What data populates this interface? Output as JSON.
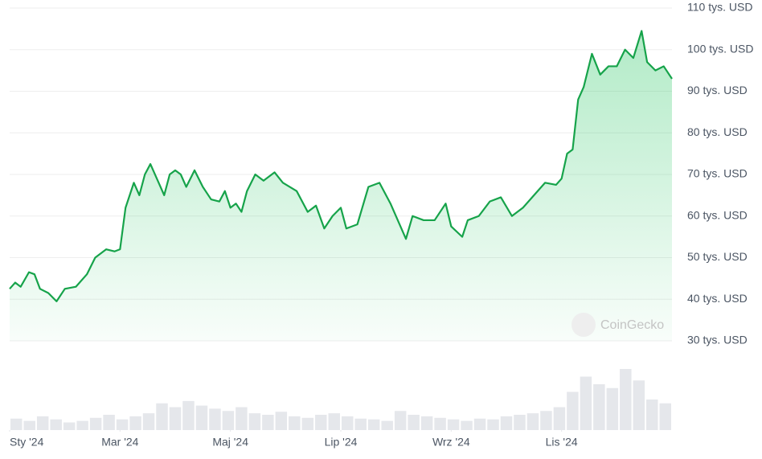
{
  "chart_data": {
    "type": "area",
    "watermark": "CoinGecko",
    "xlim": [
      0,
      12
    ],
    "xticks": [
      {
        "value": 0,
        "label": "Sty '24"
      },
      {
        "value": 2,
        "label": "Mar '24"
      },
      {
        "value": 4,
        "label": "Maj '24"
      },
      {
        "value": 6,
        "label": "Lip '24"
      },
      {
        "value": 8,
        "label": "Wrz '24"
      },
      {
        "value": 10,
        "label": "Lis '24"
      }
    ],
    "ylim": [
      30,
      110
    ],
    "yticks": [
      {
        "value": 30,
        "label": "30 tys. USD"
      },
      {
        "value": 40,
        "label": "40 tys. USD"
      },
      {
        "value": 50,
        "label": "50 tys. USD"
      },
      {
        "value": 60,
        "label": "60 tys. USD"
      },
      {
        "value": 70,
        "label": "70 tys. USD"
      },
      {
        "value": 80,
        "label": "80 tys. USD"
      },
      {
        "value": 90,
        "label": "90 tys. USD"
      },
      {
        "value": 100,
        "label": "100 tys. USD"
      },
      {
        "value": 110,
        "label": "110 tys. USD"
      }
    ],
    "grid": true,
    "color": "#16a34a",
    "x": [
      0,
      0.1,
      0.2,
      0.35,
      0.45,
      0.55,
      0.7,
      0.85,
      1,
      1.2,
      1.4,
      1.55,
      1.75,
      1.9,
      2,
      2.1,
      2.25,
      2.35,
      2.45,
      2.55,
      2.7,
      2.8,
      2.9,
      3,
      3.1,
      3.2,
      3.35,
      3.5,
      3.65,
      3.8,
      3.9,
      4,
      4.1,
      4.2,
      4.3,
      4.45,
      4.6,
      4.8,
      4.95,
      5.2,
      5.4,
      5.55,
      5.7,
      5.85,
      6,
      6.1,
      6.3,
      6.5,
      6.7,
      6.9,
      7.18,
      7.3,
      7.5,
      7.7,
      7.9,
      8,
      8.2,
      8.3,
      8.5,
      8.7,
      8.9,
      9.1,
      9.3,
      9.5,
      9.7,
      9.9,
      10,
      10.1,
      10.2,
      10.3,
      10.4,
      10.55,
      10.7,
      10.85,
      11,
      11.15,
      11.3,
      11.45,
      11.55,
      11.7,
      11.85,
      12
    ],
    "values": [
      42.5,
      44,
      43,
      46.5,
      46,
      42.5,
      41.5,
      39.5,
      42.5,
      43,
      46,
      50,
      52,
      51.5,
      52,
      62,
      68,
      65,
      70,
      72.5,
      68,
      65,
      70,
      71,
      70,
      67,
      71,
      67,
      64,
      63.5,
      66,
      62,
      63,
      61,
      66,
      70,
      68.5,
      70.5,
      68,
      66,
      61,
      62.5,
      57,
      60,
      62,
      57,
      58,
      67,
      68,
      63,
      54.5,
      60,
      59,
      59,
      63,
      57.5,
      55,
      59,
      60,
      63.5,
      64.5,
      60,
      62,
      65,
      68,
      67.5,
      69,
      75,
      76,
      88,
      91,
      99,
      94,
      96,
      96,
      100,
      98,
      104.5,
      97,
      95,
      96,
      93
    ],
    "volume": {
      "color": "#e5e7eb",
      "vlim": [
        0,
        100
      ],
      "values": [
        15,
        12,
        18,
        14,
        10,
        12,
        16,
        20,
        14,
        18,
        22,
        35,
        30,
        38,
        32,
        28,
        25,
        30,
        22,
        20,
        24,
        18,
        16,
        20,
        22,
        18,
        15,
        14,
        12,
        25,
        20,
        18,
        16,
        14,
        12,
        15,
        14,
        18,
        20,
        22,
        25,
        30,
        50,
        70,
        60,
        55,
        80,
        65,
        40,
        35
      ]
    }
  }
}
